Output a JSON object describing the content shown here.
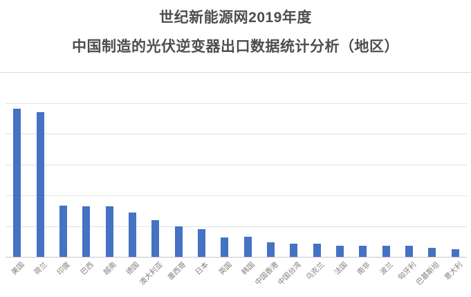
{
  "title": {
    "line1": "世纪新能源网2019年度",
    "line2": "中国制造的光伏逆变器出口数据统计分析（地区）"
  },
  "chart_data": {
    "type": "bar",
    "title": "世纪新能源网2019年度 中国制造的光伏逆变器出口数据统计分析（地区）",
    "categories": [
      "美国",
      "荷兰",
      "印度",
      "巴西",
      "越南",
      "德国",
      "澳大利亚",
      "墨西哥",
      "日本",
      "英国",
      "韩国",
      "中国香港",
      "中国台湾",
      "乌克兰",
      "法国",
      "南非",
      "波兰",
      "匈牙利",
      "巴基斯坦",
      "意大利"
    ],
    "values": [
      4.8,
      4.69,
      1.66,
      1.64,
      1.65,
      1.43,
      1.19,
      0.99,
      0.91,
      0.64,
      0.65,
      0.48,
      0.42,
      0.42,
      0.37,
      0.35,
      0.35,
      0.37,
      0.3,
      0.24
    ],
    "xlabel": "",
    "ylabel": "",
    "ylim": [
      0,
      6
    ],
    "gridline_interval": 1,
    "grid": "on",
    "y_tick_labels_visible": false,
    "data_labels_visible": false,
    "legend": "none",
    "x_label_rotation_deg": 45,
    "colors": {
      "bar": "#4472c4",
      "gridline": "#e2e2e2",
      "axis_line": "#c6c6c6",
      "x_label": "#808080",
      "title": "#4d4d4d",
      "divider": "#d9d9d9",
      "background": "#ffffff"
    }
  }
}
